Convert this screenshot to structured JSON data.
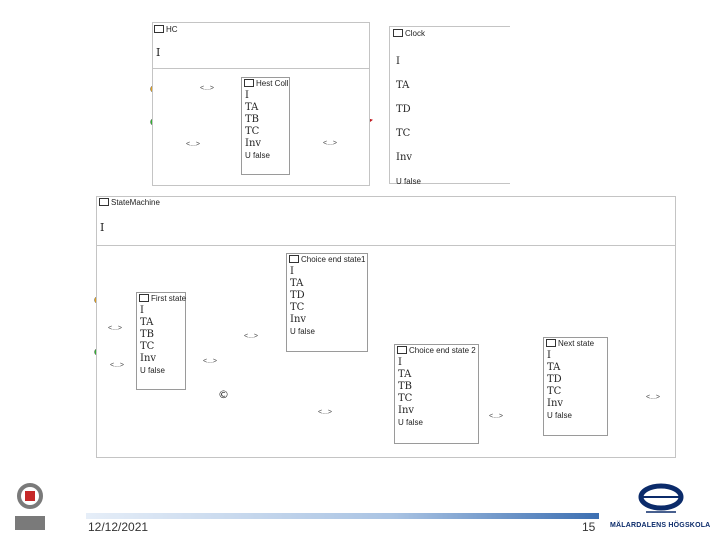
{
  "slide": {
    "date": "12/12/2021",
    "page_number": "15",
    "university": "MÄLARDALENS HÖGSKOLA"
  },
  "top_frame": {
    "title": "HC",
    "index": "I"
  },
  "clock_frame": {
    "title": "Clock",
    "rows": [
      "I",
      "TA",
      "TD",
      "TC",
      "Inv",
      "U false"
    ]
  },
  "hest_coll": {
    "title": "Hest Coll",
    "rows": [
      "I",
      "TA",
      "TB",
      "TC",
      "Inv",
      "U false"
    ]
  },
  "state_machine": {
    "title": "StateMachine",
    "index": "I"
  },
  "first_state": {
    "title": "First state",
    "rows": [
      "I",
      "TA",
      "TB",
      "TC",
      "Inv",
      "U false"
    ]
  },
  "choice_end_state_1": {
    "title": "Choice end state1",
    "rows": [
      "I",
      "TA",
      "TD",
      "TC",
      "Inv",
      "U false"
    ]
  },
  "choice_end_state_2": {
    "title": "Choice end state 2",
    "rows": [
      "I",
      "TA",
      "TB",
      "TC",
      "Inv",
      "U false"
    ]
  },
  "next_state": {
    "title": "Next state",
    "rows": [
      "I",
      "TA",
      "TD",
      "TC",
      "Inv",
      "U false"
    ]
  },
  "choice_symbol": "©",
  "edge_label": "<...>",
  "colors": {
    "input_yellow": "#e8a317",
    "input_green": "#2fb52f",
    "output_red": "#c0161c",
    "edge": "#2f7a2f"
  }
}
